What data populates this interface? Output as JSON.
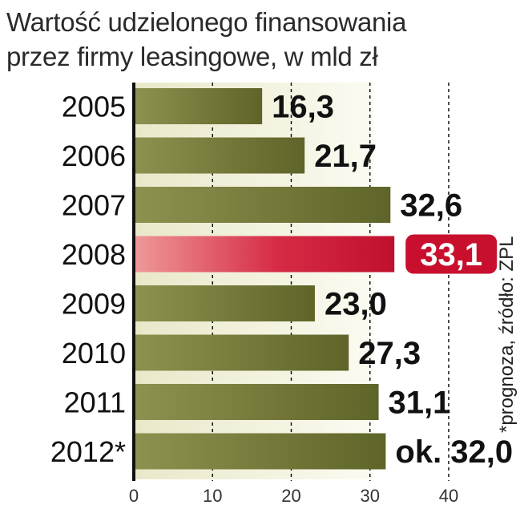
{
  "chart_data": {
    "type": "bar",
    "orientation": "horizontal",
    "title": "Wartość udzielonego finansowania przez firmy leasingowe, w mld zł",
    "title_lines": [
      "Wartość udzielonego finansowania",
      "przez firmy leasingowe, w mld zł"
    ],
    "categories": [
      "2005",
      "2006",
      "2007",
      "2008",
      "2009",
      "2010",
      "2011",
      "2012*"
    ],
    "values": [
      16.3,
      21.7,
      32.6,
      33.1,
      23.0,
      27.3,
      31.1,
      32.0
    ],
    "value_labels": [
      "16,3",
      "21,7",
      "32,6",
      "33,1",
      "23,0",
      "27,3",
      "31,1",
      "ok. 32,0"
    ],
    "highlight_category": "2008",
    "xlim": [
      0,
      40
    ],
    "xticks": [
      0,
      10,
      20,
      30,
      40
    ],
    "grid": "dashed vertical",
    "note": "*prognoza, źródło: ZPL"
  },
  "colors": {
    "bar": "#6f7434",
    "bar_highlight": "#c8102e",
    "panel": "#f3f2dd",
    "axis": "#111111"
  }
}
